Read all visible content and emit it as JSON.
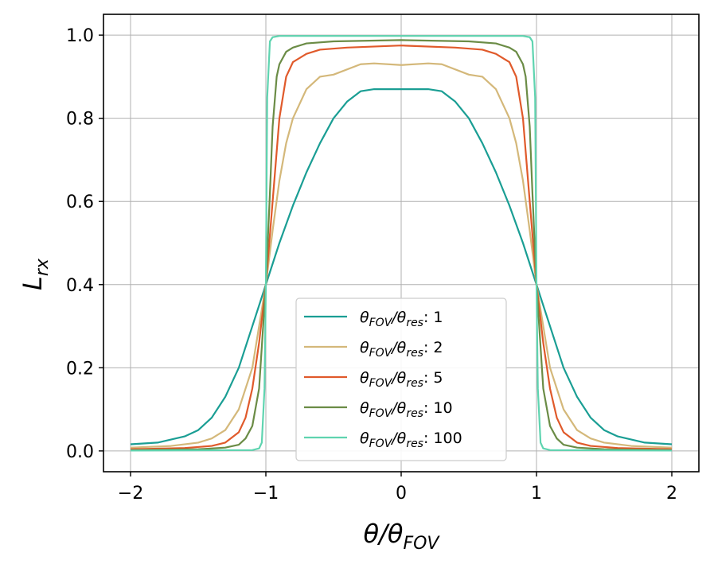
{
  "chart_data": {
    "type": "line",
    "title": "",
    "xlabel": "θ/θ",
    "xlabel_sub": "FOV",
    "ylabel": "L",
    "ylabel_sub": "rx",
    "xlim": [
      -2.2,
      2.2
    ],
    "ylim": [
      -0.05,
      1.05
    ],
    "xticks": [
      -2,
      -1,
      0,
      1,
      2
    ],
    "xtick_labels": [
      "−2",
      "−1",
      "0",
      "1",
      "2"
    ],
    "yticks": [
      0.0,
      0.2,
      0.4,
      0.6,
      0.8,
      1.0
    ],
    "ytick_labels": [
      "0.0",
      "0.2",
      "0.4",
      "0.6",
      "0.8",
      "1.0"
    ],
    "grid": true,
    "legend_position": "lower-center",
    "legend_label_main": "θ",
    "legend_label_sub1": "FOV",
    "legend_label_slash": "/θ",
    "legend_label_sub2": "res",
    "series": [
      {
        "name": "1",
        "color": "#1a9e94",
        "x": [
          -2,
          -1.8,
          -1.6,
          -1.5,
          -1.4,
          -1.3,
          -1.2,
          -1.1,
          -1.0,
          -0.9,
          -0.8,
          -0.7,
          -0.6,
          -0.5,
          -0.4,
          -0.3,
          -0.2,
          0,
          0.2,
          0.3,
          0.4,
          0.5,
          0.6,
          0.7,
          0.8,
          0.9,
          1.0,
          1.1,
          1.2,
          1.3,
          1.4,
          1.5,
          1.6,
          1.8,
          2
        ],
        "y": [
          0.016,
          0.02,
          0.035,
          0.05,
          0.08,
          0.13,
          0.2,
          0.3,
          0.4,
          0.5,
          0.59,
          0.67,
          0.74,
          0.8,
          0.84,
          0.865,
          0.87,
          0.87,
          0.87,
          0.865,
          0.84,
          0.8,
          0.74,
          0.67,
          0.59,
          0.5,
          0.4,
          0.3,
          0.2,
          0.13,
          0.08,
          0.05,
          0.035,
          0.02,
          0.016
        ]
      },
      {
        "name": "2",
        "color": "#d4b87a",
        "x": [
          -2,
          -1.7,
          -1.5,
          -1.4,
          -1.3,
          -1.2,
          -1.1,
          -1.0,
          -0.95,
          -0.9,
          -0.85,
          -0.8,
          -0.7,
          -0.6,
          -0.5,
          -0.3,
          -0.2,
          0,
          0.2,
          0.3,
          0.5,
          0.6,
          0.7,
          0.8,
          0.85,
          0.9,
          0.95,
          1.0,
          1.1,
          1.2,
          1.3,
          1.4,
          1.5,
          1.7,
          2
        ],
        "y": [
          0.008,
          0.012,
          0.02,
          0.03,
          0.05,
          0.1,
          0.2,
          0.4,
          0.53,
          0.65,
          0.74,
          0.8,
          0.87,
          0.9,
          0.905,
          0.93,
          0.932,
          0.928,
          0.932,
          0.93,
          0.905,
          0.9,
          0.87,
          0.8,
          0.74,
          0.65,
          0.53,
          0.4,
          0.2,
          0.1,
          0.05,
          0.03,
          0.02,
          0.012,
          0.008
        ]
      },
      {
        "name": "5",
        "color": "#e05a2b",
        "x": [
          -2,
          -1.6,
          -1.4,
          -1.3,
          -1.2,
          -1.15,
          -1.1,
          -1.05,
          -1.0,
          -0.95,
          -0.9,
          -0.85,
          -0.8,
          -0.7,
          -0.6,
          -0.4,
          0,
          0.4,
          0.6,
          0.7,
          0.8,
          0.85,
          0.9,
          0.95,
          1.0,
          1.05,
          1.1,
          1.15,
          1.2,
          1.3,
          1.4,
          1.6,
          2
        ],
        "y": [
          0.004,
          0.007,
          0.012,
          0.02,
          0.045,
          0.08,
          0.15,
          0.26,
          0.4,
          0.6,
          0.8,
          0.9,
          0.935,
          0.955,
          0.965,
          0.97,
          0.975,
          0.97,
          0.965,
          0.955,
          0.935,
          0.9,
          0.8,
          0.6,
          0.4,
          0.26,
          0.15,
          0.08,
          0.045,
          0.02,
          0.012,
          0.007,
          0.004
        ]
      },
      {
        "name": "10",
        "color": "#6b8c46",
        "x": [
          -2,
          -1.5,
          -1.3,
          -1.2,
          -1.15,
          -1.1,
          -1.05,
          -1.0,
          -0.97,
          -0.95,
          -0.92,
          -0.9,
          -0.85,
          -0.8,
          -0.7,
          -0.5,
          0,
          0.5,
          0.7,
          0.8,
          0.85,
          0.9,
          0.92,
          0.95,
          0.97,
          1.0,
          1.05,
          1.1,
          1.15,
          1.2,
          1.3,
          1.5,
          2
        ],
        "y": [
          0.002,
          0.004,
          0.008,
          0.015,
          0.03,
          0.06,
          0.15,
          0.4,
          0.62,
          0.78,
          0.9,
          0.93,
          0.96,
          0.97,
          0.98,
          0.985,
          0.988,
          0.985,
          0.98,
          0.97,
          0.96,
          0.93,
          0.9,
          0.78,
          0.62,
          0.4,
          0.15,
          0.06,
          0.03,
          0.015,
          0.008,
          0.004,
          0.002
        ]
      },
      {
        "name": "100",
        "color": "#5fd4b0",
        "x": [
          -2,
          -1.1,
          -1.05,
          -1.03,
          -1.01,
          -1.0,
          -0.99,
          -0.97,
          -0.95,
          -0.9,
          0,
          0.9,
          0.95,
          0.97,
          0.99,
          1.0,
          1.01,
          1.03,
          1.05,
          1.1,
          2
        ],
        "y": [
          0.001,
          0.002,
          0.006,
          0.02,
          0.15,
          0.4,
          0.85,
          0.985,
          0.995,
          0.998,
          0.998,
          0.998,
          0.995,
          0.985,
          0.85,
          0.4,
          0.15,
          0.02,
          0.006,
          0.002,
          0.001
        ]
      }
    ]
  }
}
